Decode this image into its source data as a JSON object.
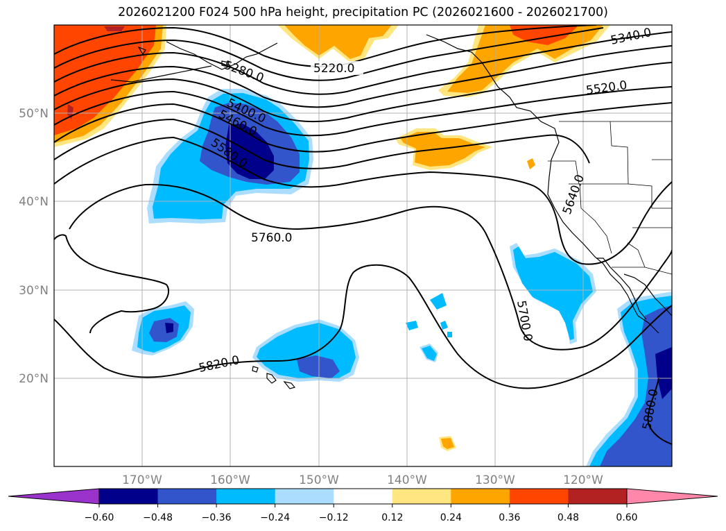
{
  "title": "2026021200 F024 500 hPa height, precipitation PC (2026021600 - 2026021700)",
  "map": {
    "lon_range": [
      -180,
      -110
    ],
    "lat_range": [
      10,
      60
    ],
    "grid": true,
    "lat_ticks": [
      "20°N",
      "30°N",
      "40°N",
      "50°N"
    ],
    "lon_ticks": [
      "170°W",
      "160°W",
      "150°W",
      "140°W",
      "130°W",
      "120°W"
    ],
    "tick_color": "#808080",
    "contour_labels": [
      "5220.0",
      "5280.0",
      "5340.0",
      "5400.0",
      "5460.0",
      "5520.0",
      "5580.0",
      "5640.0",
      "5700.0",
      "5760.0",
      "5820.0",
      "5880.0"
    ]
  },
  "colorbar": {
    "labels": [
      "−0.60",
      "−0.48",
      "−0.36",
      "−0.24",
      "−0.12",
      "0.12",
      "0.24",
      "0.36",
      "0.48",
      "0.60"
    ],
    "under_color": "#9933cc",
    "over_color": "#ff88aa",
    "colors": [
      "#00008b",
      "#3355cc",
      "#00bbff",
      "#aaddff",
      "#ffffff",
      "#ffe680",
      "#ffa500",
      "#ff4500",
      "#b22222"
    ]
  }
}
